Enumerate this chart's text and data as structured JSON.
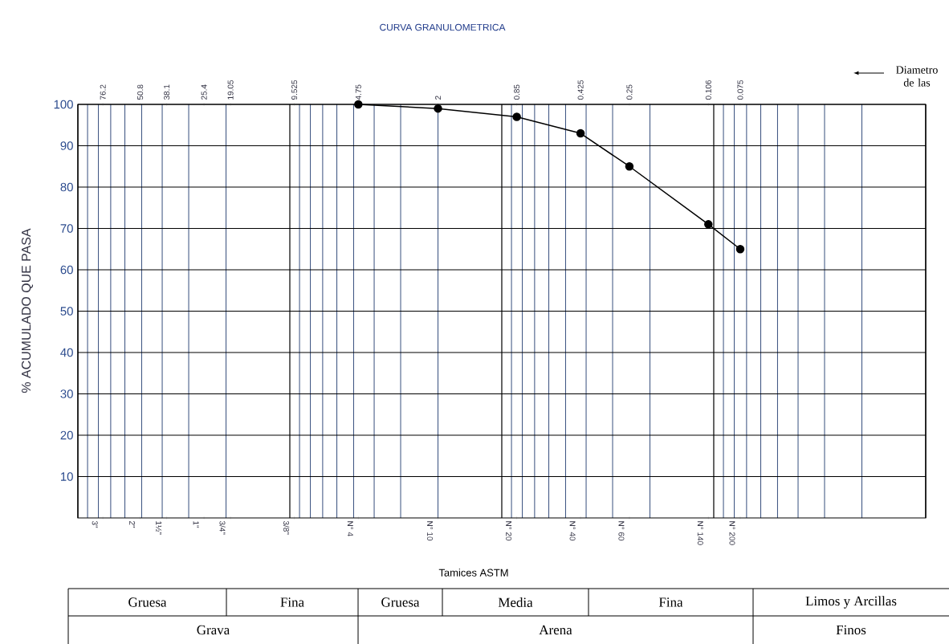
{
  "chart_data": {
    "type": "line",
    "title": "CURVA GRANULOMETRICA",
    "xlabel": "Tamices ASTM",
    "ylabel": "% ACUMULADO QUE PASA",
    "log": "x",
    "grid": true,
    "marker": "circle",
    "line_style": "solid",
    "color": "#000000",
    "x": [
      4.75,
      2,
      0.85,
      0.425,
      0.25,
      0.106,
      0.075
    ],
    "values": [
      100,
      99,
      97,
      93,
      85,
      71,
      65
    ],
    "xlim": [
      100,
      0.01
    ],
    "ylim": [
      0,
      100
    ],
    "yticks": [
      10,
      20,
      30,
      40,
      50,
      60,
      70,
      80,
      90,
      100
    ],
    "xticks": [
      76.2,
      50.8,
      38.1,
      25.4,
      19.05,
      9.525,
      4.75,
      2,
      0.85,
      0.425,
      0.25,
      0.106,
      0.075
    ],
    "annotations": [
      "Gruesa",
      "Fina",
      "Gruesa",
      "Media",
      "Fina",
      "Limos y Arcillas",
      "Grava",
      "Arena",
      "Finos",
      "Diametro de las",
      "3\"",
      "2\"",
      "1½\"",
      "1\"",
      "3/4\"",
      "3/8\"",
      "N° 4",
      "N° 10",
      "N° 20",
      "N° 40",
      "N° 60",
      "N° 140",
      "N° 200"
    ]
  }
}
